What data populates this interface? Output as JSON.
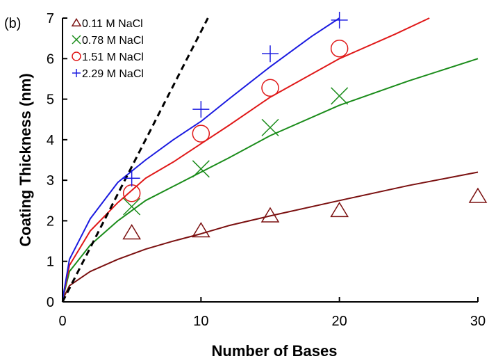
{
  "chart_data": {
    "type": "scatter",
    "panel_label": "(b)",
    "xlabel": "Number of Bases",
    "ylabel": "Coating Thickness (nm)",
    "xlim": [
      0,
      30
    ],
    "ylim": [
      0,
      7
    ],
    "x_ticks": [
      0,
      10,
      20,
      30
    ],
    "y_ticks": [
      0,
      1,
      2,
      3,
      4,
      5,
      6,
      7
    ],
    "grid": false,
    "legend_position": "top-left",
    "series": [
      {
        "name": "0.11 M NaCl",
        "color": "#7b1010",
        "marker": "triangle",
        "points": [
          [
            5,
            1.7
          ],
          [
            10,
            1.75
          ],
          [
            15,
            2.12
          ],
          [
            20,
            2.25
          ],
          [
            30,
            2.6
          ]
        ],
        "fit": [
          [
            0,
            0.05
          ],
          [
            0.5,
            0.4
          ],
          [
            2,
            0.75
          ],
          [
            4,
            1.05
          ],
          [
            6,
            1.3
          ],
          [
            8,
            1.5
          ],
          [
            10,
            1.68
          ],
          [
            12,
            1.88
          ],
          [
            15,
            2.12
          ],
          [
            20,
            2.5
          ],
          [
            25,
            2.87
          ],
          [
            30,
            3.2
          ]
        ]
      },
      {
        "name": "0.78 M NaCl",
        "color": "#1a8c1a",
        "marker": "x",
        "points": [
          [
            5,
            2.35
          ],
          [
            10,
            3.28
          ],
          [
            15,
            4.3
          ],
          [
            20,
            5.08
          ]
        ],
        "fit": [
          [
            0,
            0.05
          ],
          [
            0.5,
            0.75
          ],
          [
            2,
            1.4
          ],
          [
            4,
            2.0
          ],
          [
            6,
            2.5
          ],
          [
            8,
            2.85
          ],
          [
            10,
            3.2
          ],
          [
            12,
            3.55
          ],
          [
            15,
            4.1
          ],
          [
            20,
            4.85
          ],
          [
            25,
            5.45
          ],
          [
            30,
            6.0
          ]
        ]
      },
      {
        "name": "1.51 M NaCl",
        "color": "#e01818",
        "marker": "circle",
        "points": [
          [
            5,
            2.68
          ],
          [
            10,
            4.15
          ],
          [
            15,
            5.28
          ],
          [
            20,
            6.25
          ]
        ],
        "fit": [
          [
            0,
            0.05
          ],
          [
            0.5,
            0.9
          ],
          [
            2,
            1.75
          ],
          [
            4,
            2.45
          ],
          [
            6,
            3.05
          ],
          [
            8,
            3.45
          ],
          [
            10,
            3.9
          ],
          [
            12,
            4.35
          ],
          [
            15,
            5.05
          ],
          [
            20,
            6.0
          ],
          [
            24,
            6.6
          ],
          [
            26.5,
            7.0
          ]
        ]
      },
      {
        "name": "2.29 M NaCl",
        "color": "#1a1ae0",
        "marker": "plus",
        "points": [
          [
            5,
            3.05
          ],
          [
            10,
            4.75
          ],
          [
            15,
            6.12
          ],
          [
            20,
            6.95
          ]
        ],
        "fit": [
          [
            0,
            0.05
          ],
          [
            0.5,
            1.05
          ],
          [
            2,
            2.05
          ],
          [
            4,
            2.95
          ],
          [
            6,
            3.5
          ],
          [
            8,
            4.0
          ],
          [
            10,
            4.45
          ],
          [
            12,
            5.0
          ],
          [
            15,
            5.8
          ],
          [
            18,
            6.55
          ],
          [
            20,
            7.0
          ]
        ]
      }
    ],
    "reference_line": {
      "style": "dashed",
      "color": "#000000",
      "points": [
        [
          0,
          0
        ],
        [
          10.5,
          7
        ]
      ]
    }
  }
}
